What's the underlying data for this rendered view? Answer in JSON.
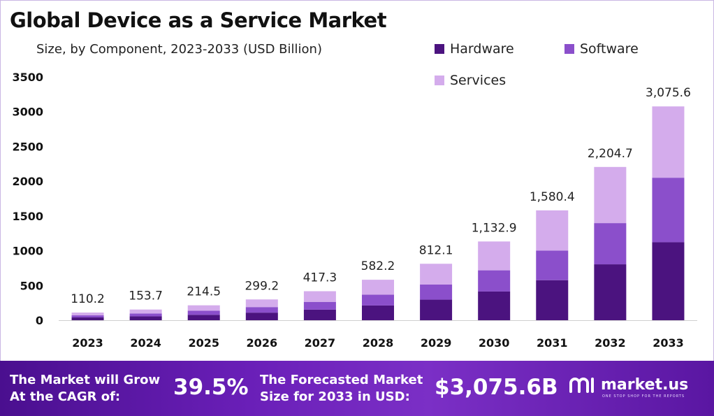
{
  "title": "Global Device as a Service Market",
  "subtitle": "Size, by Component, 2023-2033 (USD Billion)",
  "colors": {
    "hardware": "#4b137f",
    "software": "#8b4fcb",
    "services": "#d4acec",
    "footer_bg": "#6a1fb8"
  },
  "legend": [
    {
      "label": "Hardware",
      "color": "#4b137f"
    },
    {
      "label": "Software",
      "color": "#8b4fcb"
    },
    {
      "label": "Services",
      "color": "#d4acec"
    }
  ],
  "chart_data": {
    "type": "bar",
    "stacked": true,
    "title": "Global Device as a Service Market",
    "subtitle": "Size, by Component, 2023-2033 (USD Billion)",
    "categories": [
      "2023",
      "2024",
      "2025",
      "2026",
      "2027",
      "2028",
      "2029",
      "2030",
      "2031",
      "2032",
      "2033"
    ],
    "series": [
      {
        "name": "Hardware",
        "values": [
          40,
          56,
          78,
          109,
          152,
          212,
          296,
          413,
          576,
          804,
          1122
        ]
      },
      {
        "name": "Software",
        "values": [
          30,
          41,
          58,
          80,
          112,
          156,
          218,
          305,
          425,
          593,
          928
        ]
      },
      {
        "name": "Services",
        "values": [
          40.2,
          56.7,
          78.5,
          110.2,
          153.3,
          214.2,
          298.1,
          414.9,
          579.4,
          807.7,
          1025.6
        ]
      }
    ],
    "totals": [
      110.2,
      153.7,
      214.5,
      299.2,
      417.3,
      582.2,
      812.1,
      1132.9,
      1580.4,
      2204.7,
      3075.6
    ],
    "total_labels": [
      "110.2",
      "153.7",
      "214.5",
      "299.2",
      "417.3",
      "582.2",
      "812.1",
      "1,132.9",
      "1,580.4",
      "2,204.7",
      "3,075.6"
    ],
    "yticks": [
      0,
      500,
      1000,
      1500,
      2000,
      2500,
      3000,
      3500
    ],
    "ylim": [
      0,
      3500
    ],
    "xlabel": "",
    "ylabel": "",
    "grid": false,
    "legend_position": "top-right"
  },
  "footer": {
    "cagr_label_line1": "The Market will Grow",
    "cagr_label_line2": "At the CAGR of:",
    "cagr_value": "39.5%",
    "forecast_label_line1": "The Forecasted Market",
    "forecast_label_line2": "Size for 2033 in USD:",
    "forecast_value": "$3,075.6B",
    "brand_name": "market.us",
    "brand_tagline": "ONE STOP SHOP FOR THE REPORTS"
  }
}
